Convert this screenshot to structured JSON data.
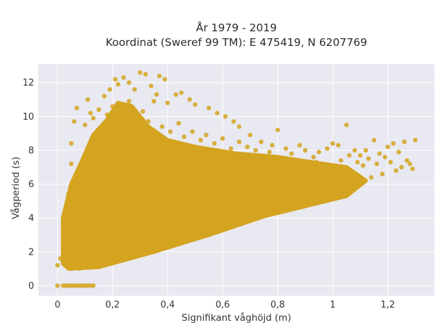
{
  "chart_data": {
    "type": "scatter",
    "title_line1": "År 1979 - 2019",
    "title_line2": "Koordinat (Sweref 99 TM): E 475419, N 6207769",
    "xlabel": "Signifikant våghöjd (m)",
    "ylabel": "Vågperiod (s)",
    "xlim": [
      -0.07,
      1.37
    ],
    "ylim": [
      -0.6,
      13.1
    ],
    "xticks": [
      0,
      0.2,
      0.4,
      0.6,
      0.8,
      1,
      1.2
    ],
    "xtick_labels": [
      "0",
      "0,2",
      "0,4",
      "0,6",
      "0,8",
      "1",
      "1,2"
    ],
    "yticks": [
      0,
      2,
      4,
      6,
      8,
      10,
      12
    ],
    "ytick_labels": [
      "0",
      "2",
      "4",
      "6",
      "8",
      "10",
      "12"
    ],
    "grid": true,
    "marker_color": "#D4A420",
    "plot_background": "#E9E9F1",
    "points": [
      [
        0.0,
        1.2
      ],
      [
        0.02,
        1.4
      ],
      [
        0.03,
        1.6
      ],
      [
        0.05,
        2.2
      ],
      [
        0.06,
        3.0
      ],
      [
        0.04,
        5.4
      ],
      [
        0.05,
        7.2
      ],
      [
        0.05,
        8.4
      ],
      [
        0.06,
        9.7
      ],
      [
        0.07,
        10.5
      ],
      [
        0.08,
        7.0
      ],
      [
        0.09,
        6.2
      ],
      [
        0.1,
        9.5
      ],
      [
        0.11,
        11.0
      ],
      [
        0.12,
        10.2
      ],
      [
        0.13,
        9.9
      ],
      [
        0.15,
        10.4
      ],
      [
        0.17,
        11.2
      ],
      [
        0.19,
        11.6
      ],
      [
        0.21,
        12.2
      ],
      [
        0.22,
        11.9
      ],
      [
        0.24,
        12.3
      ],
      [
        0.26,
        12.0
      ],
      [
        0.28,
        11.6
      ],
      [
        0.3,
        12.6
      ],
      [
        0.32,
        12.5
      ],
      [
        0.34,
        11.8
      ],
      [
        0.37,
        12.4
      ],
      [
        0.39,
        12.2
      ],
      [
        0.36,
        11.3
      ],
      [
        0.4,
        10.8
      ],
      [
        0.43,
        11.3
      ],
      [
        0.45,
        11.4
      ],
      [
        0.48,
        11.0
      ],
      [
        0.5,
        10.7
      ],
      [
        0.55,
        10.5
      ],
      [
        0.58,
        10.2
      ],
      [
        0.61,
        10.0
      ],
      [
        0.64,
        9.7
      ],
      [
        0.66,
        9.4
      ],
      [
        0.7,
        8.9
      ],
      [
        0.74,
        8.5
      ],
      [
        0.78,
        8.3
      ],
      [
        0.8,
        9.2
      ],
      [
        0.83,
        8.1
      ],
      [
        0.85,
        7.8
      ],
      [
        0.88,
        8.3
      ],
      [
        0.9,
        8.0
      ],
      [
        0.93,
        7.6
      ],
      [
        0.95,
        7.9
      ],
      [
        0.98,
        8.1
      ],
      [
        1.0,
        8.4
      ],
      [
        1.02,
        8.3
      ],
      [
        1.05,
        9.5
      ],
      [
        1.08,
        8.0
      ],
      [
        1.1,
        7.7
      ],
      [
        1.12,
        8.0
      ],
      [
        1.15,
        8.6
      ],
      [
        1.17,
        7.8
      ],
      [
        1.2,
        8.2
      ],
      [
        1.22,
        8.4
      ],
      [
        1.24,
        7.9
      ],
      [
        1.26,
        8.5
      ],
      [
        1.28,
        7.2
      ],
      [
        1.3,
        8.6
      ],
      [
        1.29,
        6.9
      ],
      [
        1.25,
        7.0
      ],
      [
        1.21,
        7.3
      ],
      [
        1.18,
        6.6
      ],
      [
        1.14,
        6.4
      ],
      [
        1.11,
        7.1
      ],
      [
        1.07,
        6.6
      ],
      [
        1.04,
        6.9
      ],
      [
        1.01,
        6.3
      ],
      [
        0.98,
        5.9
      ],
      [
        0.95,
        5.8
      ],
      [
        0.92,
        6.6
      ],
      [
        0.88,
        5.4
      ],
      [
        0.84,
        5.2
      ],
      [
        0.8,
        5.0
      ],
      [
        0.76,
        4.7
      ],
      [
        0.72,
        4.5
      ],
      [
        0.68,
        4.2
      ],
      [
        0.64,
        3.9
      ],
      [
        0.6,
        3.6
      ],
      [
        0.56,
        3.4
      ],
      [
        0.52,
        3.1
      ],
      [
        0.48,
        2.9
      ],
      [
        0.44,
        2.7
      ],
      [
        0.4,
        2.5
      ],
      [
        0.36,
        2.4
      ],
      [
        0.32,
        2.2
      ],
      [
        0.28,
        2.0
      ],
      [
        0.24,
        1.9
      ],
      [
        0.2,
        1.6
      ],
      [
        0.17,
        1.4
      ],
      [
        0.14,
        1.3
      ],
      [
        0.11,
        1.1
      ],
      [
        0.08,
        1.0
      ],
      [
        0.05,
        1.0
      ],
      [
        0.02,
        0.0
      ],
      [
        0.03,
        0.0
      ],
      [
        0.04,
        0.0
      ],
      [
        0.05,
        0.0
      ],
      [
        0.06,
        0.0
      ],
      [
        0.07,
        0.0
      ],
      [
        0.08,
        0.0
      ],
      [
        0.09,
        0.0
      ],
      [
        0.1,
        0.0
      ],
      [
        0.11,
        0.0
      ],
      [
        0.12,
        0.0
      ],
      [
        0.13,
        0.0
      ],
      [
        0.0,
        0.0
      ],
      [
        0.01,
        1.6
      ],
      [
        0.03,
        2.8
      ],
      [
        0.02,
        3.4
      ],
      [
        0.04,
        4.2
      ],
      [
        0.06,
        4.8
      ],
      [
        0.07,
        5.6
      ],
      [
        0.08,
        6.4
      ],
      [
        0.1,
        7.4
      ],
      [
        0.12,
        8.2
      ],
      [
        0.14,
        8.8
      ],
      [
        0.16,
        9.3
      ],
      [
        0.18,
        10.1
      ],
      [
        0.2,
        10.6
      ],
      [
        0.23,
        9.8
      ],
      [
        0.26,
        10.9
      ],
      [
        0.29,
        9.6
      ],
      [
        0.31,
        10.3
      ],
      [
        0.33,
        9.7
      ],
      [
        0.35,
        10.9
      ],
      [
        0.38,
        9.4
      ],
      [
        0.41,
        9.1
      ],
      [
        0.44,
        9.6
      ],
      [
        0.46,
        8.8
      ],
      [
        0.49,
        9.1
      ],
      [
        0.52,
        8.6
      ],
      [
        0.54,
        8.9
      ],
      [
        0.57,
        8.4
      ],
      [
        0.6,
        8.7
      ],
      [
        0.63,
        8.1
      ],
      [
        0.66,
        8.5
      ],
      [
        0.69,
        8.2
      ],
      [
        0.72,
        8.0
      ],
      [
        0.75,
        7.6
      ],
      [
        0.77,
        7.9
      ],
      [
        0.82,
        7.4
      ],
      [
        0.86,
        7.2
      ],
      [
        0.9,
        7.0
      ],
      [
        0.94,
        7.3
      ],
      [
        0.97,
        6.8
      ],
      [
        1.0,
        7.0
      ],
      [
        1.03,
        7.4
      ],
      [
        1.06,
        7.7
      ],
      [
        1.09,
        7.3
      ],
      [
        1.13,
        7.5
      ],
      [
        1.16,
        7.2
      ],
      [
        1.19,
        7.6
      ],
      [
        1.23,
        6.8
      ],
      [
        1.27,
        7.4
      ],
      [
        0.15,
        6.0
      ],
      [
        0.25,
        6.5
      ],
      [
        0.35,
        6.2
      ],
      [
        0.45,
        5.8
      ],
      [
        0.55,
        6.1
      ],
      [
        0.65,
        5.9
      ],
      [
        0.75,
        6.0
      ],
      [
        0.85,
        6.2
      ],
      [
        0.95,
        6.4
      ],
      [
        0.2,
        4.0
      ],
      [
        0.3,
        4.5
      ],
      [
        0.4,
        4.8
      ],
      [
        0.5,
        5.0
      ],
      [
        0.6,
        5.2
      ],
      [
        0.7,
        5.5
      ],
      [
        0.8,
        5.7
      ],
      [
        0.9,
        6.0
      ],
      [
        0.25,
        3.0
      ],
      [
        0.35,
        3.2
      ],
      [
        0.45,
        3.6
      ],
      [
        0.55,
        4.0
      ],
      [
        0.65,
        4.5
      ],
      [
        0.15,
        2.5
      ],
      [
        0.1,
        2.0
      ],
      [
        0.12,
        3.5
      ],
      [
        0.18,
        5.0
      ],
      [
        0.22,
        7.5
      ],
      [
        0.28,
        8.0
      ],
      [
        0.34,
        7.0
      ]
    ]
  }
}
